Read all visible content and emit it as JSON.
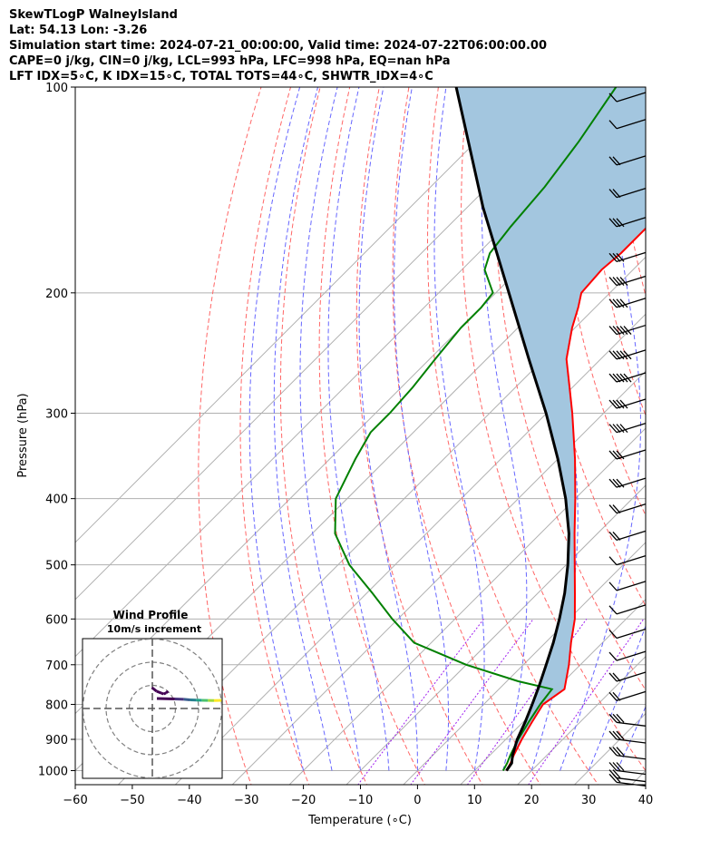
{
  "header": {
    "line1": "SkewTLogP WalneyIsland",
    "line2": "Lat: 54.13   Lon: -3.26",
    "line3": "Simulation start time: 2024-07-21_00:00:00, Valid time: 2024-07-22T06:00:00.00",
    "line4": "CAPE=0 j/kg, CIN=0 j/kg, LCL=993 hPa, LFC=998 hPa, EQ=nan hPa",
    "line5": "LFT IDX=5∘C, K IDX=15∘C, TOTAL TOTS=44∘C, SHWTR_IDX=4∘C"
  },
  "chart_data": {
    "type": "line",
    "title": "SkewTLogP WalneyIsland",
    "xlabel": "Temperature (∘C)",
    "ylabel": "Pressure (hPa)",
    "xlim": [
      -60,
      40
    ],
    "ylim": [
      1050,
      100
    ],
    "x_ticks": [
      -60,
      -50,
      -40,
      -30,
      -20,
      -10,
      0,
      10,
      20,
      30,
      40
    ],
    "x_tick_labels": [
      "−60",
      "−50",
      "−40",
      "−30",
      "−20",
      "−10",
      "0",
      "10",
      "20",
      "30",
      "40"
    ],
    "y_ticks": [
      1000,
      900,
      800,
      700,
      600,
      500,
      400,
      300,
      200,
      100
    ],
    "y_tick_labels": [
      "1000",
      "900",
      "800",
      "700",
      "600",
      "500",
      "400",
      "300",
      "200",
      "100"
    ],
    "series": [
      {
        "name": "Temperature",
        "color": "#ff0000",
        "p": [
          1000,
          975,
          950,
          900,
          850,
          800,
          760,
          700,
          650,
          600,
          550,
          500,
          450,
          400,
          350,
          300,
          275,
          250,
          225,
          210,
          200,
          185,
          175,
          160,
          140,
          120,
          108,
          100
        ],
        "t": [
          15.6,
          15,
          14.2,
          12.8,
          11.6,
          10.4,
          11.5,
          8,
          4.5,
          1,
          -3.5,
          -8.5,
          -14,
          -20,
          -27,
          -35.5,
          -40.5,
          -46,
          -50.5,
          -53,
          -55,
          -55.5,
          -55,
          -55,
          -57,
          -60,
          -61,
          -63
        ]
      },
      {
        "name": "Dewpoint",
        "color": "#008000",
        "p": [
          1000,
          975,
          950,
          900,
          850,
          800,
          760,
          740,
          700,
          650,
          600,
          550,
          500,
          450,
          400,
          350,
          320,
          300,
          275,
          250,
          225,
          210,
          200,
          185,
          175,
          160,
          140,
          120,
          100
        ],
        "t": [
          15,
          14.4,
          13.6,
          12.2,
          11,
          9.9,
          9.3,
          2,
          -10,
          -23,
          -31,
          -39,
          -48,
          -56,
          -62,
          -65.5,
          -67.5,
          -67.5,
          -68,
          -69,
          -70,
          -70,
          -70.5,
          -76,
          -78,
          -79,
          -80,
          -82,
          -85
        ]
      },
      {
        "name": "Parcel",
        "color": "#000000",
        "p": [
          1000,
          975,
          950,
          900,
          850,
          800,
          750,
          700,
          650,
          600,
          550,
          500,
          450,
          400,
          350,
          300,
          250,
          200,
          150,
          100
        ],
        "t": [
          15.6,
          15.2,
          14,
          12,
          10.4,
          8.5,
          6.4,
          4,
          1.4,
          -1.7,
          -5.3,
          -9.7,
          -15,
          -21.7,
          -30,
          -40.1,
          -52.6,
          -67.7,
          -87.2,
          -113
        ]
      }
    ],
    "wind_profile": {
      "title": "Wind Profile",
      "subtitle": "10m/s increment",
      "rings_ms": [
        10,
        20,
        30
      ],
      "hodograph_u": [
        0,
        12,
        18,
        22,
        26,
        30,
        34,
        38,
        41,
        43
      ],
      "hodograph_v": [
        0,
        1.5,
        3,
        5,
        6,
        6.5,
        7,
        7.5,
        7,
        6.5
      ],
      "hodograph_u_upper": [
        -8,
        -6,
        -4,
        -3,
        -2,
        -1
      ],
      "hodograph_v_upper": [
        5,
        7,
        8,
        8.5,
        8,
        7
      ]
    },
    "wind_barbs": {
      "p": [
        1040,
        1025,
        1000,
        950,
        900,
        850,
        790,
        740,
        690,
        640,
        590,
        545,
        500,
        460,
        420,
        385,
        350,
        320,
        295,
        270,
        250,
        230,
        210,
        195,
        180,
        160,
        145,
        130,
        115,
        105
      ],
      "speed_kt": [
        15,
        20,
        25,
        25,
        30,
        25,
        20,
        15,
        10,
        10,
        10,
        10,
        10,
        15,
        20,
        25,
        30,
        35,
        40,
        45,
        50,
        45,
        40,
        35,
        30,
        25,
        20,
        15,
        10,
        10
      ]
    },
    "isotherms_c": [
      -100,
      -90,
      -80,
      -70,
      -60,
      -50,
      -40,
      -30,
      -20,
      -10,
      0,
      10,
      20,
      30,
      40
    ],
    "dry_adiabats_c": [
      -30,
      -20,
      -10,
      0,
      10,
      20,
      30,
      40,
      50,
      60,
      70,
      80,
      90,
      100,
      110,
      120,
      130,
      140,
      150
    ],
    "moist_adiabats_c": [
      -20,
      -15,
      -10,
      -5,
      0,
      5,
      10,
      15,
      20,
      25,
      30,
      35
    ],
    "mixing_ratios_gkg": [
      2,
      4,
      8,
      16
    ],
    "colors": {
      "cape_fill": "#a3c6df",
      "temperature": "#ff0000",
      "dewpoint": "#008000",
      "parcel": "#000000",
      "dry_adiabat": "#ff6666",
      "moist_adiabat": "#6666ff",
      "mixing_ratio": "#a020f0",
      "grid": "#b0b0b0"
    }
  }
}
